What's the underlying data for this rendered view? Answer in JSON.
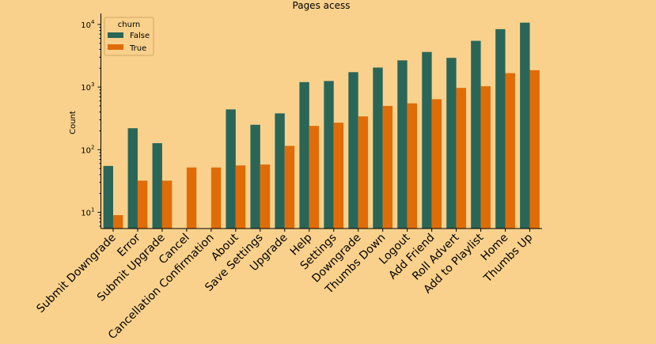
{
  "chart_data": {
    "type": "bar",
    "title": "Pages acess",
    "xlabel": "",
    "ylabel": "Count",
    "yscale": "log",
    "ylim": [
      5.5,
      15000
    ],
    "yticks": [
      {
        "value": 10,
        "base": "10",
        "exp": "1"
      },
      {
        "value": 100,
        "base": "10",
        "exp": "2"
      },
      {
        "value": 1000,
        "base": "10",
        "exp": "3"
      },
      {
        "value": 10000,
        "base": "10",
        "exp": "4"
      }
    ],
    "categories": [
      "Submit Downgrade",
      "Error",
      "Submit Upgrade",
      "Cancel",
      "Cancellation Confirmation",
      "About",
      "Save Settings",
      "Upgrade",
      "Help",
      "Settings",
      "Downgrade",
      "Thumbs Down",
      "Logout",
      "Add Friend",
      "Roll Advert",
      "Add to Playlist",
      "Home",
      "Thumbs Up"
    ],
    "legend": {
      "title": "churn",
      "placement": "top-left"
    },
    "series": [
      {
        "name": "False",
        "color": "#2a6657",
        "values": [
          55,
          220,
          127,
          null,
          null,
          440,
          250,
          380,
          1200,
          1250,
          1730,
          2050,
          2670,
          3640,
          2930,
          5480,
          8420,
          10690
        ]
      },
      {
        "name": "True",
        "color": "#e06c08",
        "values": [
          9,
          32,
          32,
          52,
          52,
          56,
          58,
          115,
          240,
          270,
          340,
          500,
          550,
          640,
          970,
          1030,
          1670,
          1860
        ]
      }
    ]
  }
}
